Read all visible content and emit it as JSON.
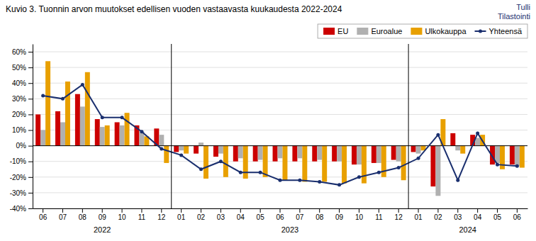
{
  "chart_data": {
    "type": "bar",
    "title": "Kuvio 3. Tuonnin arvon muutokset edellisen vuoden vastaavasta kuukaudesta 2022-2024",
    "categories": [
      "06",
      "07",
      "08",
      "09",
      "10",
      "11",
      "12",
      "01",
      "02",
      "03",
      "04",
      "05",
      "06",
      "07",
      "08",
      "09",
      "10",
      "11",
      "12",
      "01",
      "02",
      "03",
      "04",
      "05",
      "06"
    ],
    "series": [
      {
        "name": "EU",
        "type": "bar",
        "color": "#cc0000",
        "values": [
          20,
          22,
          33,
          17,
          15,
          13,
          11,
          -4,
          -5,
          -7,
          -10,
          -10,
          -10,
          -10,
          -10,
          -10,
          -12,
          -11,
          -9,
          -4,
          -26,
          8,
          7,
          -12,
          -12
        ]
      },
      {
        "name": "Euroalue",
        "type": "bar",
        "color": "#b0b0b0",
        "values": [
          10,
          15,
          25,
          12,
          13,
          9,
          7,
          -3,
          2,
          -5,
          -8,
          -9,
          -8,
          -8,
          -9,
          -10,
          -12,
          -11,
          -10,
          -5,
          -32,
          -3,
          5,
          -11,
          -13
        ]
      },
      {
        "name": "Ulkokauppa",
        "type": "bar",
        "color": "#e8a000",
        "values": [
          54,
          41,
          47,
          13,
          21,
          6,
          -11,
          -5,
          -21,
          -20,
          -21,
          -20,
          -22,
          -23,
          -23,
          -24,
          -24,
          -20,
          -22,
          -3,
          17,
          -5,
          7,
          -15,
          -14
        ]
      },
      {
        "name": "Yhteensä",
        "type": "line",
        "color": "#1a2f6e",
        "marker": "circle",
        "values": [
          32,
          30,
          39,
          18,
          18,
          9,
          -2,
          -6,
          -15,
          -10,
          -17,
          -17,
          -22,
          -22,
          -23,
          -25,
          -20,
          -17,
          -14,
          -8,
          7,
          -22,
          8,
          -12,
          -13
        ]
      }
    ],
    "ylim": [
      -40,
      65
    ],
    "yticks": [
      {
        "value": -40,
        "label": "-40%"
      },
      {
        "value": -30,
        "label": "-30%"
      },
      {
        "value": -20,
        "label": "-20%"
      },
      {
        "value": -10,
        "label": "-10%"
      },
      {
        "value": 0,
        "label": "0%"
      },
      {
        "value": 10,
        "label": "10%"
      },
      {
        "value": 20,
        "label": "20%"
      },
      {
        "value": 30,
        "label": "30%"
      },
      {
        "value": 40,
        "label": "40%"
      },
      {
        "value": 50,
        "label": "50%"
      },
      {
        "value": 60,
        "label": "60%"
      }
    ],
    "grid": true,
    "legend": "upper right",
    "annotations": [
      {
        "text": "Tulli\nTilastointi"
      },
      {
        "text": "2022",
        "from": 0,
        "to": 6
      },
      {
        "text": "2023",
        "from": 7,
        "to": 18
      },
      {
        "text": "2024",
        "from": 19,
        "to": 24
      }
    ]
  }
}
